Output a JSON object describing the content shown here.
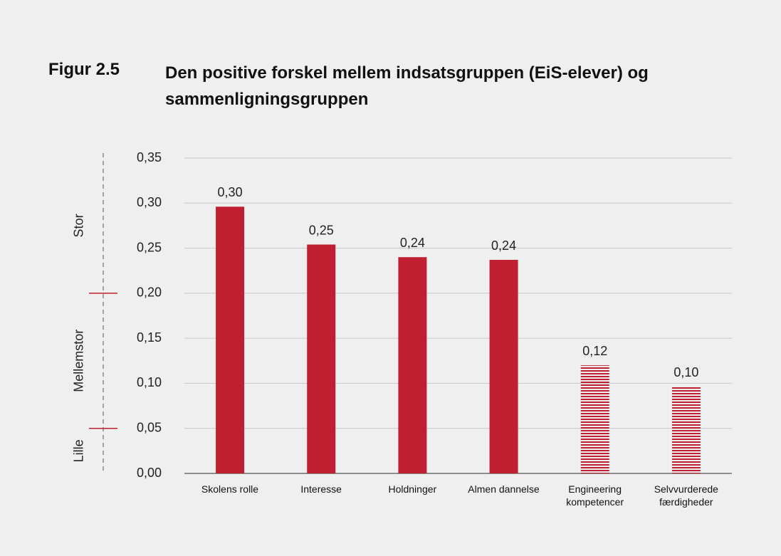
{
  "chart_data": {
    "type": "bar",
    "figure_label": "Figur 2.5",
    "title": "Den positive forskel mellem indsatsgruppen (EiS-elever) og sammenligningsgruppen",
    "categories": [
      "Skolens rolle",
      "Interesse",
      "Holdninger",
      "Almen dannelse",
      "Engineering\nkompetencer",
      "Selvvurderede\nfærdigheder"
    ],
    "values": [
      0.296,
      0.254,
      0.24,
      0.237,
      0.12,
      0.096
    ],
    "value_labels": [
      "0,30",
      "0,25",
      "0,24",
      "0,24",
      "0,12",
      "0,10"
    ],
    "hatched": [
      false,
      false,
      false,
      false,
      true,
      true
    ],
    "color": "#c01f32",
    "ylim": [
      0,
      0.35
    ],
    "yticks": [
      {
        "value": 0,
        "label": "0,00"
      },
      {
        "value": 0.05,
        "label": "0,05"
      },
      {
        "value": 0.1,
        "label": "0,10"
      },
      {
        "value": 0.15,
        "label": "0,15"
      },
      {
        "value": 0.2,
        "label": "0,20"
      },
      {
        "value": 0.25,
        "label": "0,25"
      },
      {
        "value": 0.3,
        "label": "0,30"
      },
      {
        "value": 0.35,
        "label": "0,35"
      }
    ],
    "grid": true,
    "effect_scale": {
      "labels": [
        "Lille",
        "Mellemstor",
        "Stor"
      ],
      "thresholds": [
        0.05,
        0.2
      ]
    }
  }
}
